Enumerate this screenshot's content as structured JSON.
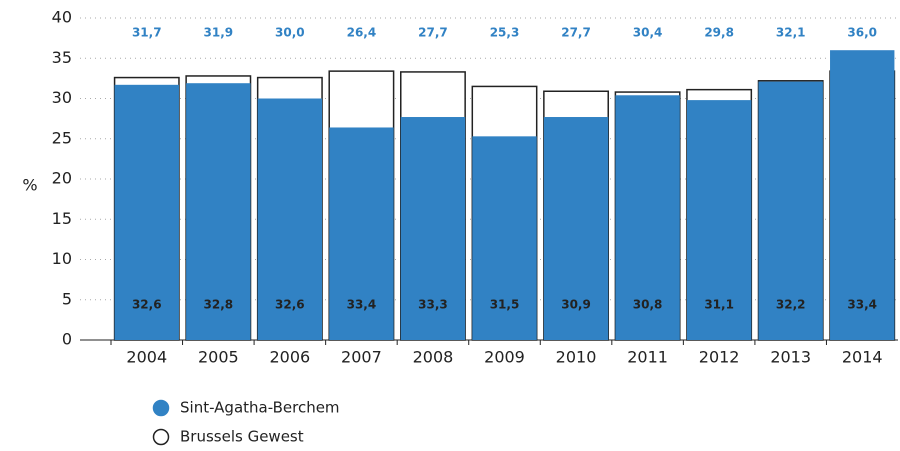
{
  "chart_data": {
    "type": "bar",
    "y_label": "%",
    "categories": [
      "2004",
      "2005",
      "2006",
      "2007",
      "2008",
      "2009",
      "2010",
      "2011",
      "2012",
      "2013",
      "2014"
    ],
    "series": [
      {
        "name": "Sint-Agatha-Berchem",
        "color": "#3182c4",
        "values": [
          31.7,
          31.9,
          30.0,
          26.4,
          27.7,
          25.3,
          27.7,
          30.4,
          29.8,
          32.1,
          36.0
        ],
        "value_labels": [
          "31,7",
          "31,9",
          "30,0",
          "26,4",
          "27,7",
          "25,3",
          "27,7",
          "30,4",
          "29,8",
          "32,1",
          "36,0"
        ]
      },
      {
        "name": "Brussels Gewest",
        "color": "#ffffff",
        "values": [
          32.6,
          32.8,
          32.6,
          33.4,
          33.3,
          31.5,
          30.9,
          30.8,
          31.1,
          32.2,
          33.4
        ],
        "value_labels": [
          "32,6",
          "32,8",
          "32,6",
          "33,4",
          "33,3",
          "31,5",
          "30,9",
          "30,8",
          "31,1",
          "32,2",
          "33,4"
        ]
      }
    ],
    "ylim": [
      0,
      40
    ],
    "yticks": [
      0,
      5,
      10,
      15,
      20,
      25,
      30,
      35,
      40
    ],
    "grid": true
  }
}
